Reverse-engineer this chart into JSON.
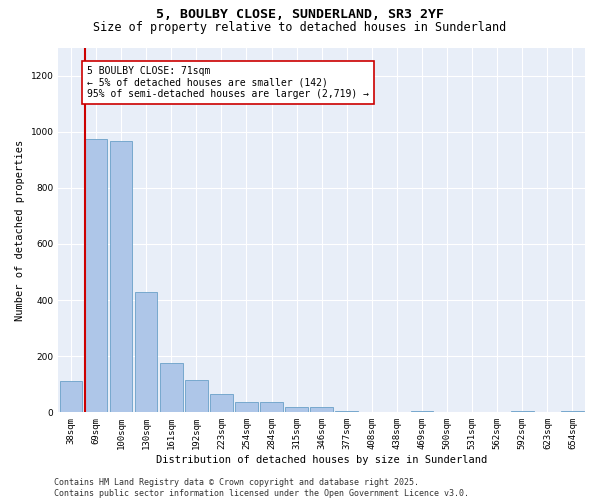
{
  "title_line1": "5, BOULBY CLOSE, SUNDERLAND, SR3 2YF",
  "title_line2": "Size of property relative to detached houses in Sunderland",
  "xlabel": "Distribution of detached houses by size in Sunderland",
  "ylabel": "Number of detached properties",
  "categories": [
    "38sqm",
    "69sqm",
    "100sqm",
    "130sqm",
    "161sqm",
    "192sqm",
    "223sqm",
    "254sqm",
    "284sqm",
    "315sqm",
    "346sqm",
    "377sqm",
    "408sqm",
    "438sqm",
    "469sqm",
    "500sqm",
    "531sqm",
    "562sqm",
    "592sqm",
    "623sqm",
    "654sqm"
  ],
  "values": [
    113,
    975,
    968,
    430,
    175,
    115,
    65,
    38,
    38,
    20,
    18,
    6,
    0,
    0,
    5,
    0,
    0,
    0,
    5,
    0,
    5
  ],
  "bar_color": "#aec6e8",
  "bar_edge_color": "#6aa0c8",
  "vline_color": "#cc0000",
  "annotation_text": "5 BOULBY CLOSE: 71sqm\n← 5% of detached houses are smaller (142)\n95% of semi-detached houses are larger (2,719) →",
  "annotation_box_color": "#ffffff",
  "annotation_box_edge_color": "#cc0000",
  "ylim": [
    0,
    1300
  ],
  "yticks": [
    0,
    200,
    400,
    600,
    800,
    1000,
    1200
  ],
  "background_color": "#e8eef8",
  "footer_line1": "Contains HM Land Registry data © Crown copyright and database right 2025.",
  "footer_line2": "Contains public sector information licensed under the Open Government Licence v3.0.",
  "title_fontsize": 9.5,
  "subtitle_fontsize": 8.5,
  "axis_label_fontsize": 7.5,
  "tick_fontsize": 6.5,
  "annotation_fontsize": 7,
  "footer_fontsize": 6
}
